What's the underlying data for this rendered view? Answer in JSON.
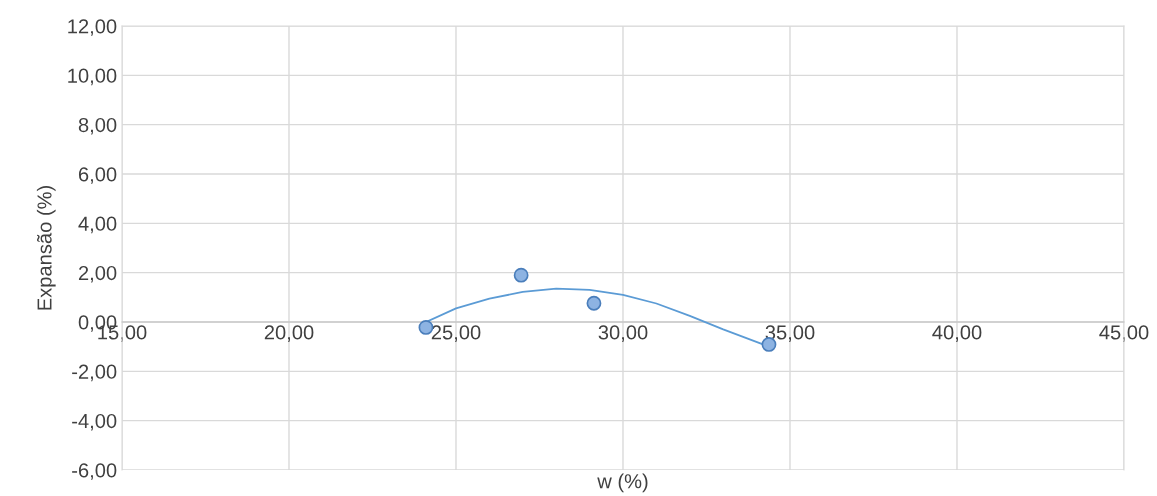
{
  "chart_data": {
    "type": "scatter",
    "xlabel": "w (%)",
    "ylabel": "Expansão (%)",
    "series": [
      {
        "color": "#8db3e2",
        "marker": "circle",
        "x": [
          24.1,
          26.95,
          29.13,
          34.37
        ],
        "values": [
          -0.22,
          1.9,
          0.76,
          -0.91
        ]
      },
      {
        "type": "line",
        "color": "#5b9bd5",
        "marker": "none",
        "line_style": "solid",
        "x": [
          24.1,
          25.0,
          26.0,
          27.0,
          28.0,
          29.0,
          30.0,
          31.0,
          32.0,
          33.0,
          34.37
        ],
        "values": [
          0.0,
          0.55,
          0.95,
          1.22,
          1.35,
          1.3,
          1.1,
          0.75,
          0.25,
          -0.3,
          -1.0
        ]
      }
    ],
    "xlim": [
      15,
      45
    ],
    "ylim": [
      -6,
      12
    ],
    "xticks": [
      {
        "value": 15,
        "label": "15,00"
      },
      {
        "value": 20,
        "label": "20,00"
      },
      {
        "value": 25,
        "label": "25,00"
      },
      {
        "value": 30,
        "label": "30,00"
      },
      {
        "value": 35,
        "label": "35,00"
      },
      {
        "value": 40,
        "label": "40,00"
      },
      {
        "value": 45,
        "label": "45,00"
      }
    ],
    "yticks": [
      {
        "value": -6,
        "label": "-6,00"
      },
      {
        "value": -4,
        "label": "-4,00"
      },
      {
        "value": -2,
        "label": "-2,00"
      },
      {
        "value": 0,
        "label": "0,00"
      },
      {
        "value": 2,
        "label": "2,00"
      },
      {
        "value": 4,
        "label": "4,00"
      },
      {
        "value": 6,
        "label": "6,00"
      },
      {
        "value": 8,
        "label": "8,00"
      },
      {
        "value": 10,
        "label": "10,00"
      },
      {
        "value": 12,
        "label": "12,00"
      }
    ],
    "grid": true,
    "legend": false
  }
}
